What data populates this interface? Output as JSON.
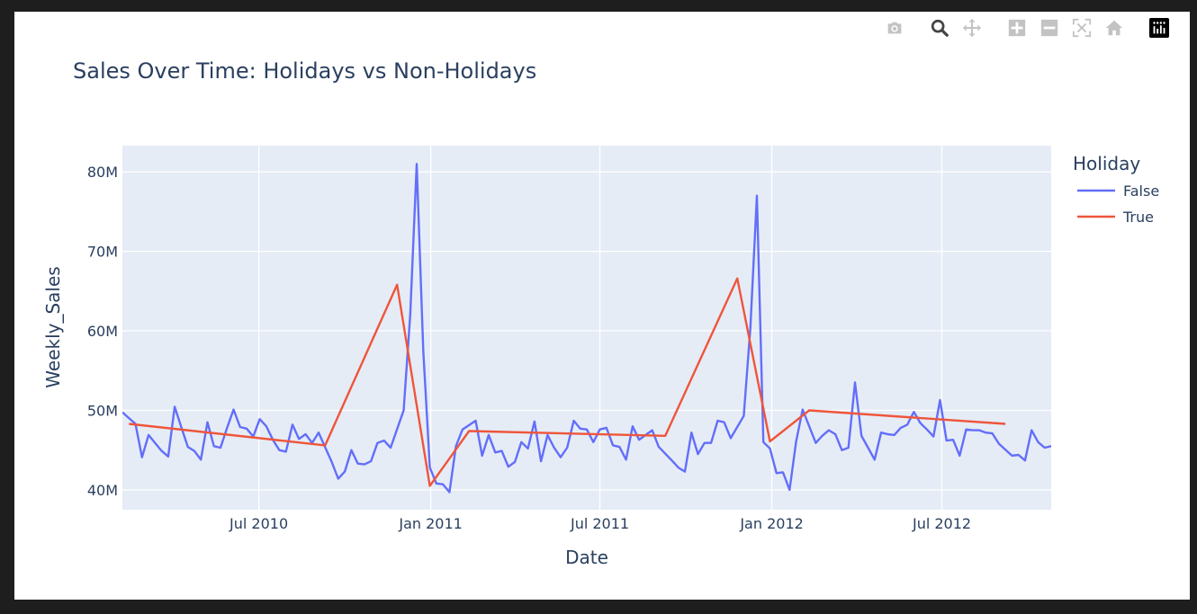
{
  "modebar": {
    "buttons": [
      "camera-icon",
      "zoom-icon",
      "pan-icon",
      "zoom-in-icon",
      "zoom-out-icon",
      "autoscale-icon",
      "reset-axes-icon",
      "plotly-logo-icon"
    ]
  },
  "colors": {
    "plot_bg": "#e5ecf6",
    "false_line": "#636efa",
    "true_line": "#ef553b",
    "text": "#2a3f5f"
  },
  "chart_data": {
    "type": "line",
    "title": "Sales Over Time: Holidays vs Non-Holidays",
    "xlabel": "Date",
    "ylabel": "Weekly_Sales",
    "x_tick_labels": [
      "Jul 2010",
      "Jan 2011",
      "Jul 2011",
      "Jan 2012",
      "Jul 2012"
    ],
    "y_tick_labels": [
      "40M",
      "50M",
      "60M",
      "70M",
      "80M"
    ],
    "y_tick_values": [
      40000000,
      50000000,
      60000000,
      70000000,
      80000000
    ],
    "xlim": [
      "2010-02-05",
      "2012-10-26"
    ],
    "ylim": [
      37500000,
      83300000
    ],
    "grid": true,
    "legend": {
      "title": "Holiday",
      "placement": "right"
    },
    "series": [
      {
        "name": "False",
        "x": [
          "2010-02-05",
          "2010-02-19",
          "2010-02-26",
          "2010-03-05",
          "2010-03-12",
          "2010-03-19",
          "2010-03-26",
          "2010-04-02",
          "2010-04-09",
          "2010-04-16",
          "2010-04-23",
          "2010-04-30",
          "2010-05-07",
          "2010-05-14",
          "2010-05-21",
          "2010-05-28",
          "2010-06-04",
          "2010-06-11",
          "2010-06-18",
          "2010-06-25",
          "2010-07-02",
          "2010-07-09",
          "2010-07-16",
          "2010-07-23",
          "2010-07-30",
          "2010-08-06",
          "2010-08-13",
          "2010-08-20",
          "2010-08-27",
          "2010-09-03",
          "2010-09-17",
          "2010-09-24",
          "2010-10-01",
          "2010-10-08",
          "2010-10-15",
          "2010-10-22",
          "2010-10-29",
          "2010-11-05",
          "2010-11-12",
          "2010-11-19",
          "2010-12-03",
          "2010-12-10",
          "2010-12-17",
          "2010-12-24",
          "2010-12-31",
          "2011-01-07",
          "2011-01-14",
          "2011-01-21",
          "2011-01-28",
          "2011-02-04",
          "2011-02-18",
          "2011-02-25",
          "2011-03-04",
          "2011-03-11",
          "2011-03-18",
          "2011-03-25",
          "2011-04-01",
          "2011-04-08",
          "2011-04-15",
          "2011-04-22",
          "2011-04-29",
          "2011-05-06",
          "2011-05-13",
          "2011-05-20",
          "2011-05-27",
          "2011-06-03",
          "2011-06-10",
          "2011-06-17",
          "2011-06-24",
          "2011-07-01",
          "2011-07-08",
          "2011-07-15",
          "2011-07-22",
          "2011-07-29",
          "2011-08-05",
          "2011-08-12",
          "2011-08-19",
          "2011-08-26",
          "2011-09-02",
          "2011-09-16",
          "2011-09-23",
          "2011-09-30",
          "2011-10-07",
          "2011-10-14",
          "2011-10-21",
          "2011-10-28",
          "2011-11-04",
          "2011-11-11",
          "2011-11-18",
          "2011-12-02",
          "2011-12-09",
          "2011-12-16",
          "2011-12-23",
          "2011-12-30",
          "2012-01-06",
          "2012-01-13",
          "2012-01-20",
          "2012-01-27",
          "2012-02-03",
          "2012-02-17",
          "2012-02-24",
          "2012-03-02",
          "2012-03-09",
          "2012-03-16",
          "2012-03-23",
          "2012-03-30",
          "2012-04-06",
          "2012-04-13",
          "2012-04-20",
          "2012-04-27",
          "2012-05-04",
          "2012-05-11",
          "2012-05-18",
          "2012-05-25",
          "2012-06-01",
          "2012-06-08",
          "2012-06-15",
          "2012-06-22",
          "2012-06-29",
          "2012-07-06",
          "2012-07-13",
          "2012-07-20",
          "2012-07-27",
          "2012-08-03",
          "2012-08-10",
          "2012-08-17",
          "2012-08-24",
          "2012-08-31",
          "2012-09-14",
          "2012-09-21",
          "2012-09-28",
          "2012-10-05",
          "2012-10-12",
          "2012-10-19",
          "2012-10-26"
        ],
        "y": [
          49750000,
          48300000,
          44100000,
          46900000,
          45900000,
          44900000,
          44200000,
          50450000,
          47900000,
          45400000,
          44900000,
          43800000,
          48500000,
          45500000,
          45300000,
          47800000,
          50100000,
          47900000,
          47700000,
          46700000,
          48900000,
          48000000,
          46300000,
          45000000,
          44800000,
          48200000,
          46400000,
          47000000,
          45900000,
          47200000,
          43500000,
          41400000,
          42300000,
          45000000,
          43300000,
          43200000,
          43600000,
          45900000,
          46200000,
          45300000,
          50000000,
          62000000,
          81000000,
          57500000,
          42800000,
          40800000,
          40700000,
          39700000,
          45500000,
          47600000,
          48700000,
          44300000,
          46900000,
          44700000,
          44900000,
          42900000,
          43500000,
          46000000,
          45200000,
          48600000,
          43600000,
          46900000,
          45300000,
          44100000,
          45300000,
          48700000,
          47700000,
          47600000,
          46000000,
          47600000,
          47800000,
          45600000,
          45400000,
          43800000,
          48000000,
          46300000,
          46900000,
          47500000,
          45400000,
          43700000,
          42800000,
          42300000,
          47200000,
          44500000,
          45900000,
          45900000,
          48700000,
          48500000,
          46500000,
          49300000,
          60300000,
          77000000,
          46000000,
          45200000,
          42100000,
          42200000,
          40000000,
          46100000,
          50100000,
          45900000,
          46800000,
          47500000,
          47000000,
          45000000,
          45300000,
          53500000,
          46800000,
          45300000,
          43800000,
          47200000,
          47000000,
          46900000,
          47800000,
          48200000,
          49800000,
          48400000,
          47600000,
          46700000,
          51300000,
          46200000,
          46300000,
          44300000,
          47600000,
          47500000,
          47500000,
          47200000,
          47100000,
          45800000,
          44300000,
          44400000,
          43700000,
          47500000,
          46000000,
          45300000,
          45500000
        ]
      },
      {
        "name": "True",
        "x": [
          "2010-02-12",
          "2010-09-10",
          "2010-11-26",
          "2010-12-31",
          "2011-02-11",
          "2011-09-09",
          "2011-11-25",
          "2011-12-30",
          "2012-02-10",
          "2012-09-07"
        ],
        "y": [
          48300000,
          45600000,
          65800000,
          40500000,
          47400000,
          46800000,
          66600000,
          46100000,
          50000000,
          48300000
        ]
      }
    ]
  }
}
